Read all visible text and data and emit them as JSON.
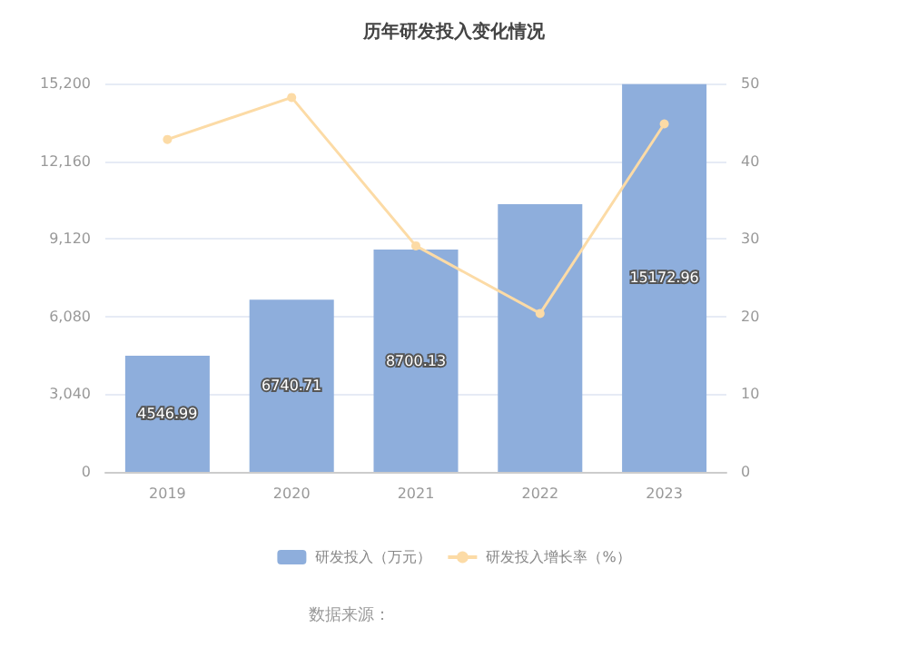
{
  "chart_data": {
    "type": "bar",
    "title": "历年研发投入变化情况",
    "categories": [
      "2019",
      "2020",
      "2021",
      "2022",
      "2023"
    ],
    "series": [
      {
        "name": "研发投入（万元）",
        "color": "#8eaedc",
        "values": [
          4546.99,
          6740.71,
          8700.13,
          10480,
          15172.96
        ],
        "value_labels": [
          "4546.99",
          "6740.71",
          "8700.13",
          null,
          "15172.96"
        ]
      },
      {
        "name": "研发投入增长率（%）",
        "type": "line",
        "axis": "y2",
        "color": "#fcdba6",
        "values": [
          42.8,
          48.2,
          29.1,
          20.4,
          44.8
        ]
      }
    ],
    "ylim": [
      0,
      15200
    ],
    "yticks": [
      {
        "value": 0,
        "label": "0"
      },
      {
        "value": 3040,
        "label": "3,040"
      },
      {
        "value": 6080,
        "label": "6,080"
      },
      {
        "value": 9120,
        "label": "9,120"
      },
      {
        "value": 12160,
        "label": "12,160"
      },
      {
        "value": 15200,
        "label": "15,200"
      }
    ],
    "y2lim": [
      0,
      50
    ],
    "y2ticks": [
      0,
      10,
      20,
      30,
      40,
      50
    ],
    "grid": "y",
    "legend": "bottom",
    "marker": "circle",
    "annotations": [
      "数据来源："
    ]
  }
}
